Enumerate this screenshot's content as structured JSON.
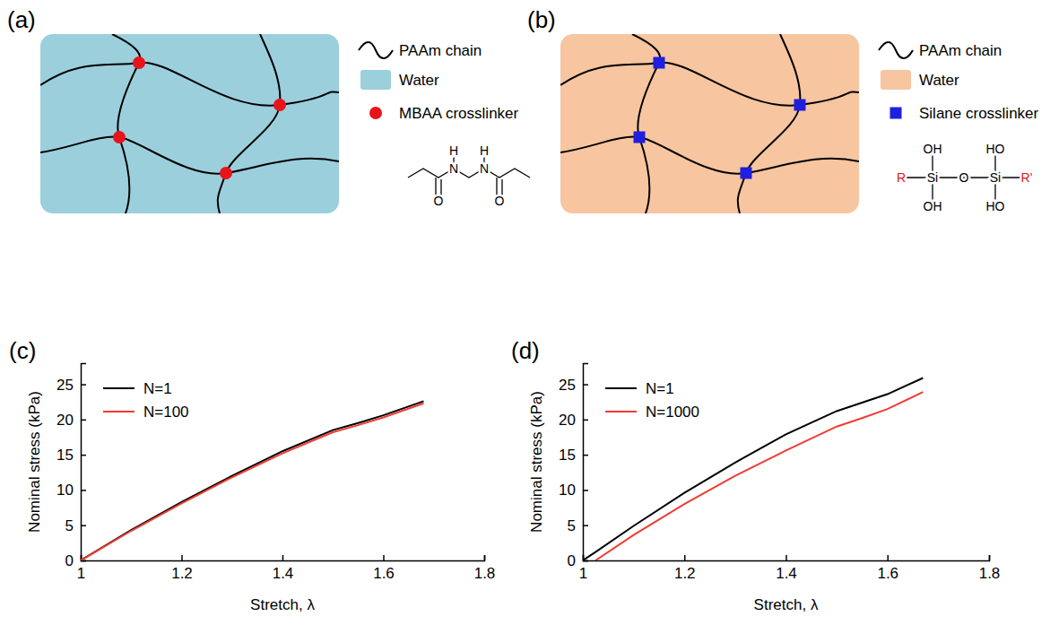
{
  "chart_data": [
    {
      "panel": "(c)",
      "type": "line",
      "x_label": "Stretch, λ",
      "y_label": "Nominal stress (kPa)",
      "x": [
        1,
        1.1,
        1.2,
        1.3,
        1.4,
        1.5,
        1.55,
        1.6,
        1.68
      ],
      "series": [
        {
          "name": "N=1",
          "color": "#000000",
          "values": [
            0,
            4.3,
            8.3,
            12.0,
            15.5,
            18.5,
            19.5,
            20.6,
            22.6
          ]
        },
        {
          "name": "N=100",
          "color": "#f03c32",
          "values": [
            0,
            4.2,
            8.1,
            11.8,
            15.2,
            18.2,
            19.2,
            20.3,
            22.3
          ]
        }
      ],
      "xlim": [
        1,
        1.8
      ],
      "xticks": [
        1,
        1.2,
        1.4,
        1.6,
        1.8
      ],
      "ylim": [
        0,
        28
      ],
      "yticks": [
        0,
        5,
        10,
        15,
        20,
        25
      ],
      "legend": "upper left"
    },
    {
      "panel": "(d)",
      "type": "line",
      "x_label": "Stretch, λ",
      "y_label": "Nominal stress (kPa)",
      "x": [
        1,
        1.025,
        1.1,
        1.2,
        1.3,
        1.4,
        1.5,
        1.55,
        1.6,
        1.67
      ],
      "series": [
        {
          "name": "N=1",
          "color": "#000000",
          "values": [
            0,
            1.2,
            4.9,
            9.6,
            13.9,
            17.9,
            21.2,
            22.4,
            23.6,
            25.9
          ]
        },
        {
          "name": "N=1000",
          "color": "#f03c32",
          "values": [
            null,
            0,
            3.6,
            8.0,
            12.0,
            15.6,
            19.0,
            20.2,
            21.5,
            23.9
          ]
        }
      ],
      "xlim": [
        1,
        1.8
      ],
      "xticks": [
        1,
        1.2,
        1.4,
        1.6,
        1.8
      ],
      "ylim": [
        0,
        28
      ],
      "yticks": [
        0,
        5,
        10,
        15,
        20,
        25
      ],
      "legend": "upper left"
    }
  ],
  "diagrams": [
    {
      "panel": "(a)",
      "legend": [
        {
          "label": "PAAm chain",
          "color": "#000000"
        },
        {
          "label": "Water",
          "color": "#9bcfdc"
        },
        {
          "label": "MBAA crosslinker",
          "color": "#e8141c",
          "marker": "circle"
        }
      ],
      "structure": {
        "labels": [
          "H",
          "N",
          "H",
          "N",
          "O",
          "O"
        ],
        "colors": [
          "#000000",
          "#000000",
          "#000000",
          "#000000",
          "#000000",
          "#000000"
        ]
      }
    },
    {
      "panel": "(b)",
      "legend": [
        {
          "label": "PAAm chain",
          "color": "#000000"
        },
        {
          "label": "Water",
          "color": "#f7c59f"
        },
        {
          "label": "Silane crosslinker",
          "color": "#1f1fe0",
          "marker": "square"
        }
      ],
      "structure": {
        "labels": [
          "OH",
          "HO",
          "R",
          "Si",
          "O",
          "Si",
          "R'",
          "OH",
          "HO"
        ],
        "colors": [
          "#000000",
          "#000000",
          "#e8141c",
          "#000000",
          "#000000",
          "#000000",
          "#e8141c",
          "#000000",
          "#000000"
        ]
      }
    }
  ]
}
